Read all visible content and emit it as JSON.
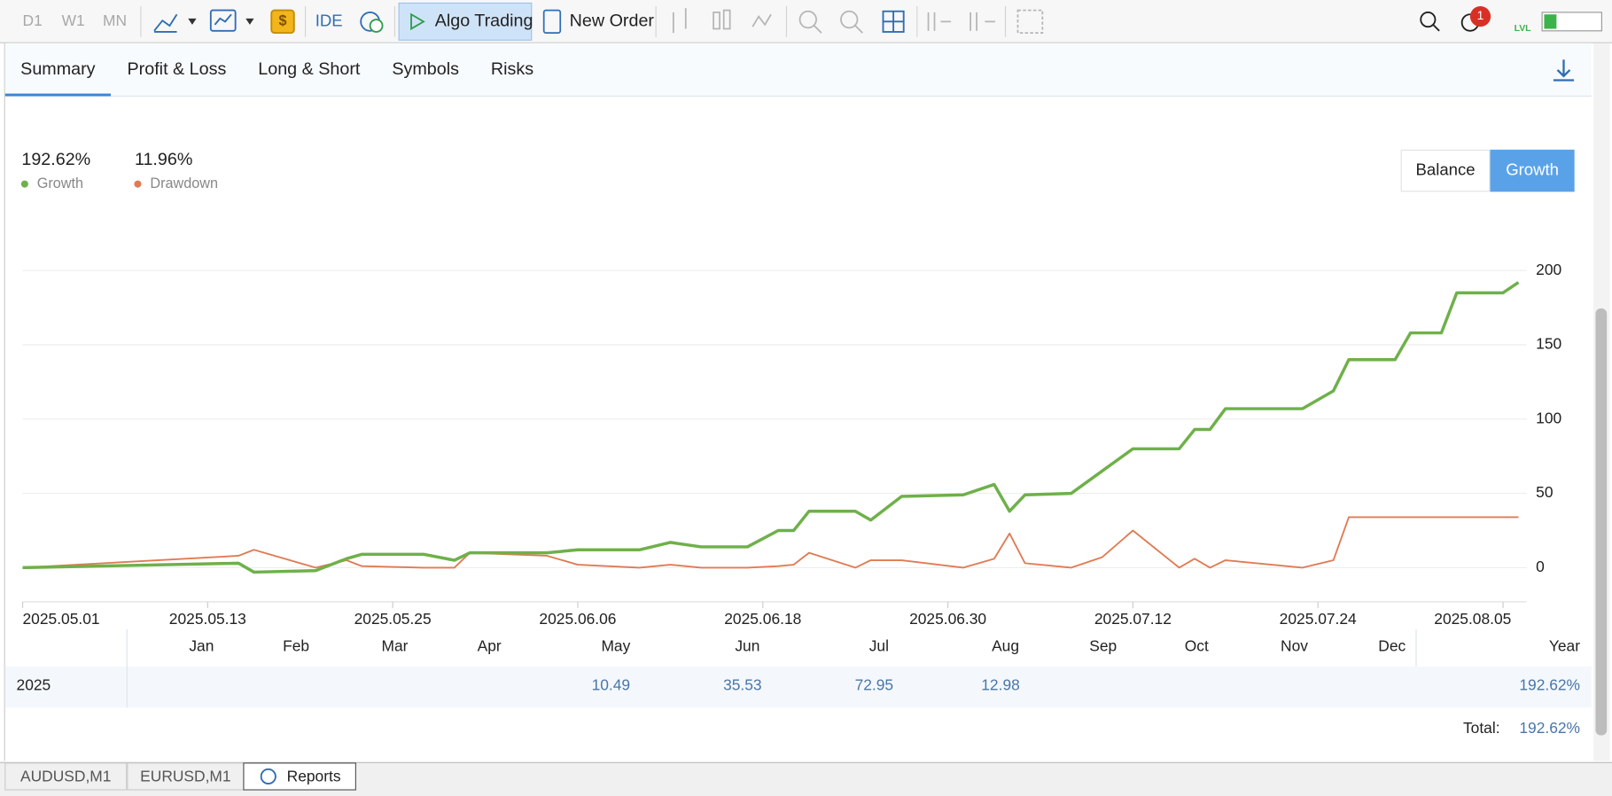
{
  "toolbar": {
    "periods": [
      "D1",
      "W1",
      "MN"
    ],
    "ide": "IDE",
    "algo_trading": "Algo Trading",
    "new_order": "New Order",
    "notifications": "1",
    "level": "LVL"
  },
  "tabs": [
    "Summary",
    "Profit & Loss",
    "Long & Short",
    "Symbols",
    "Risks"
  ],
  "active_tab": 0,
  "stats": [
    "192.62%",
    "11.96%"
  ],
  "view_toggle": {
    "options": [
      "Balance",
      "Growth"
    ],
    "active": 1
  },
  "chart_data": {
    "type": "line",
    "x": [
      "2025.05.01",
      "2025.05.15",
      "2025.05.16",
      "2025.05.20",
      "2025.05.22",
      "2025.05.23",
      "2025.05.27",
      "2025.05.29",
      "2025.05.30",
      "2025.06.04",
      "2025.06.06",
      "2025.06.10",
      "2025.06.12",
      "2025.06.14",
      "2025.06.17",
      "2025.06.19",
      "2025.06.20",
      "2025.06.21",
      "2025.06.24",
      "2025.06.25",
      "2025.06.27",
      "2025.07.01",
      "2025.07.03",
      "2025.07.04",
      "2025.07.05",
      "2025.07.08",
      "2025.07.10",
      "2025.07.12",
      "2025.07.15",
      "2025.07.16",
      "2025.07.17",
      "2025.07.18",
      "2025.07.23",
      "2025.07.25",
      "2025.07.26",
      "2025.07.29",
      "2025.07.30",
      "2025.08.01",
      "2025.08.02",
      "2025.08.05",
      "2025.08.06"
    ],
    "series": [
      {
        "name": "Growth",
        "color": "#6fb04a",
        "values": [
          0,
          3,
          -3,
          -2,
          6,
          9,
          9,
          5,
          10,
          10,
          12,
          12,
          17,
          14,
          14,
          25,
          25,
          38,
          38,
          32,
          48,
          49,
          56,
          38,
          49,
          50,
          65,
          80,
          80,
          93,
          93,
          107,
          107,
          119,
          140,
          140,
          158,
          158,
          185,
          185,
          192
        ]
      },
      {
        "name": "Drawdown",
        "color": "#e07b53",
        "values": [
          0,
          8,
          12,
          0,
          5,
          1,
          0,
          0,
          10,
          8,
          2,
          0,
          2,
          0,
          0,
          1,
          2,
          10,
          0,
          5,
          5,
          0,
          6,
          23,
          3,
          0,
          7,
          25,
          0,
          6,
          0,
          5,
          0,
          5,
          34,
          34,
          34,
          34,
          34,
          34,
          34
        ]
      }
    ],
    "xlim": [
      "2025.05.01",
      "2025.08.07"
    ],
    "xticks": [
      "2025.05.01",
      "2025.05.13",
      "2025.05.25",
      "2025.06.06",
      "2025.06.18",
      "2025.06.30",
      "2025.07.12",
      "2025.07.24",
      "2025.08.05"
    ],
    "ylim": [
      -23,
      212
    ],
    "yticks": [
      0,
      50,
      100,
      150,
      200
    ],
    "grid": true
  },
  "table": {
    "header": [
      "Jan",
      "Feb",
      "Mar",
      "Apr",
      "May",
      "Jun",
      "Jul",
      "Aug",
      "Sep",
      "Oct",
      "Nov",
      "Dec",
      "Year"
    ],
    "rows": [
      {
        "label": "2025",
        "cells": [
          null,
          null,
          null,
          null,
          "10.49",
          "35.53",
          "72.95",
          "12.98",
          null,
          null,
          null,
          null,
          "192.62%"
        ]
      }
    ],
    "total_label": "Total:",
    "total": "192.62%"
  },
  "bottom_tabs": [
    "AUDUSD,M1",
    "EURUSD,M1",
    "Reports"
  ]
}
